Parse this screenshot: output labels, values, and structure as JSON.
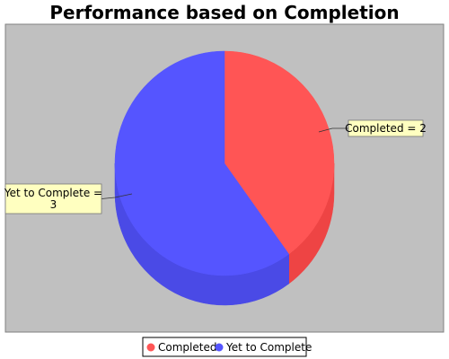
{
  "chart_data": {
    "type": "pie",
    "style": "3d",
    "title": "Performance based on Completion",
    "slices": [
      {
        "name": "Completed",
        "value": 2,
        "color": "#ff5555",
        "side_color": "#ee4444",
        "label_lines": [
          "Completed = 2"
        ]
      },
      {
        "name": "Yet to Complete",
        "value": 3,
        "color": "#5555ff",
        "side_color": "#4a4ae6",
        "label_lines": [
          "Yet to Complete =",
          "3"
        ]
      }
    ],
    "legend": {
      "position": "bottom",
      "entries": [
        "Completed",
        "Yet to Complete"
      ]
    },
    "plot_background": "#c0c0c0",
    "label_background": "#ffffc0"
  }
}
